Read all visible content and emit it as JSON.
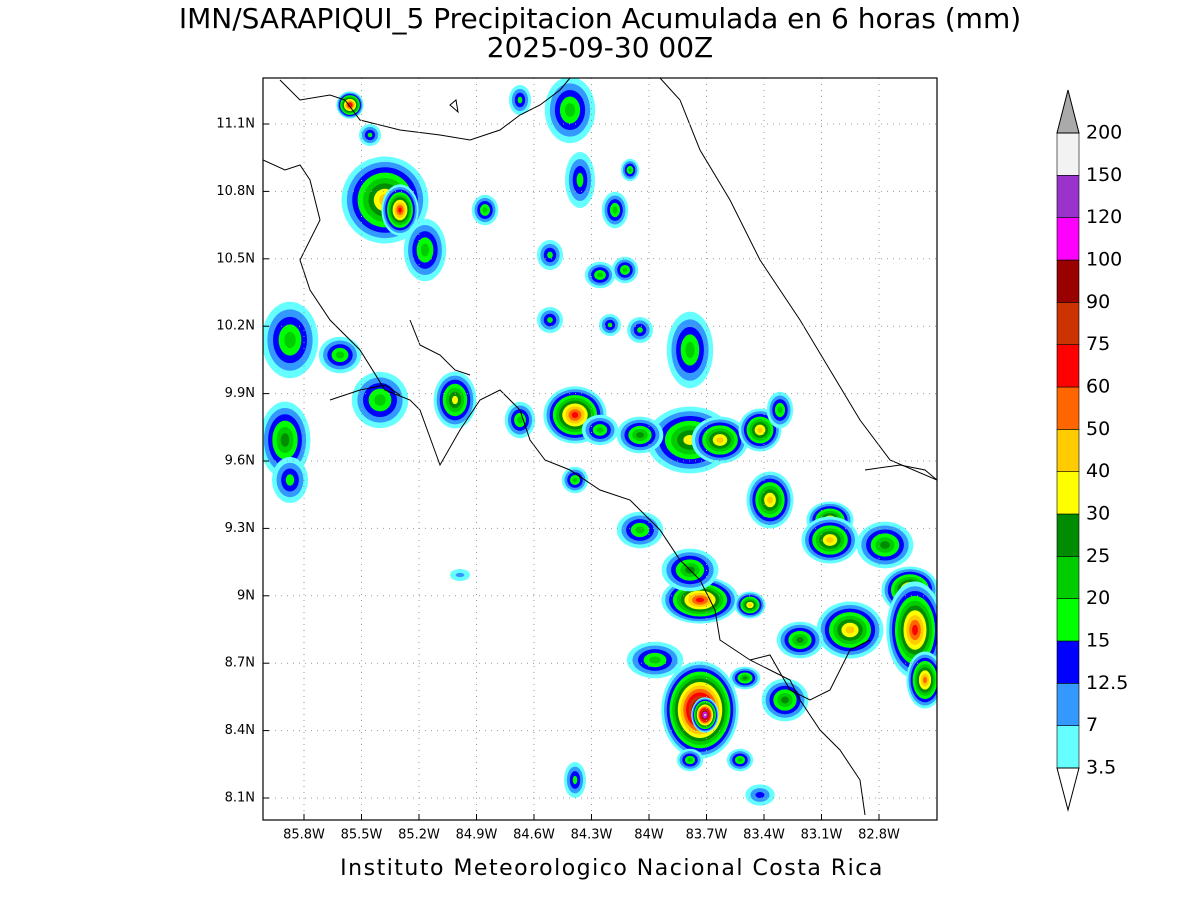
{
  "title": "IMN/SARAPIQUI_5 Precipitacion Acumulada en 6 horas (mm)",
  "subtitle": "2025-09-30 00Z",
  "map": {
    "lon_labels": [
      "85.8W",
      "85.5W",
      "85.2W",
      "84.9W",
      "84.6W",
      "84.3W",
      "84W",
      "83.7W",
      "83.4W",
      "83.1W",
      "82.8W"
    ],
    "lat_labels": [
      "11.1N",
      "10.8N",
      "10.5N",
      "10.2N",
      "9.9N",
      "9.6N",
      "9.3N",
      "9N",
      "8.7N",
      "8.4N",
      "8.1N"
    ]
  },
  "colorbar": {
    "levels": [
      3.5,
      7,
      12.5,
      15,
      20,
      25,
      30,
      40,
      50,
      60,
      75,
      90,
      100,
      120,
      150,
      200
    ],
    "colors": [
      "#66ffff",
      "#3399ff",
      "#0000ff",
      "#00ff00",
      "#00cc00",
      "#008c00",
      "#ffff00",
      "#ffcc00",
      "#ff6600",
      "#ff0000",
      "#cc3300",
      "#990000",
      "#ff00ff",
      "#9933cc",
      "#f2f2f2"
    ],
    "below_color": "#ffffff",
    "above_color": "#aaaaaa"
  },
  "footer": "Instituto Meteorologico Nacional Costa Rica"
}
